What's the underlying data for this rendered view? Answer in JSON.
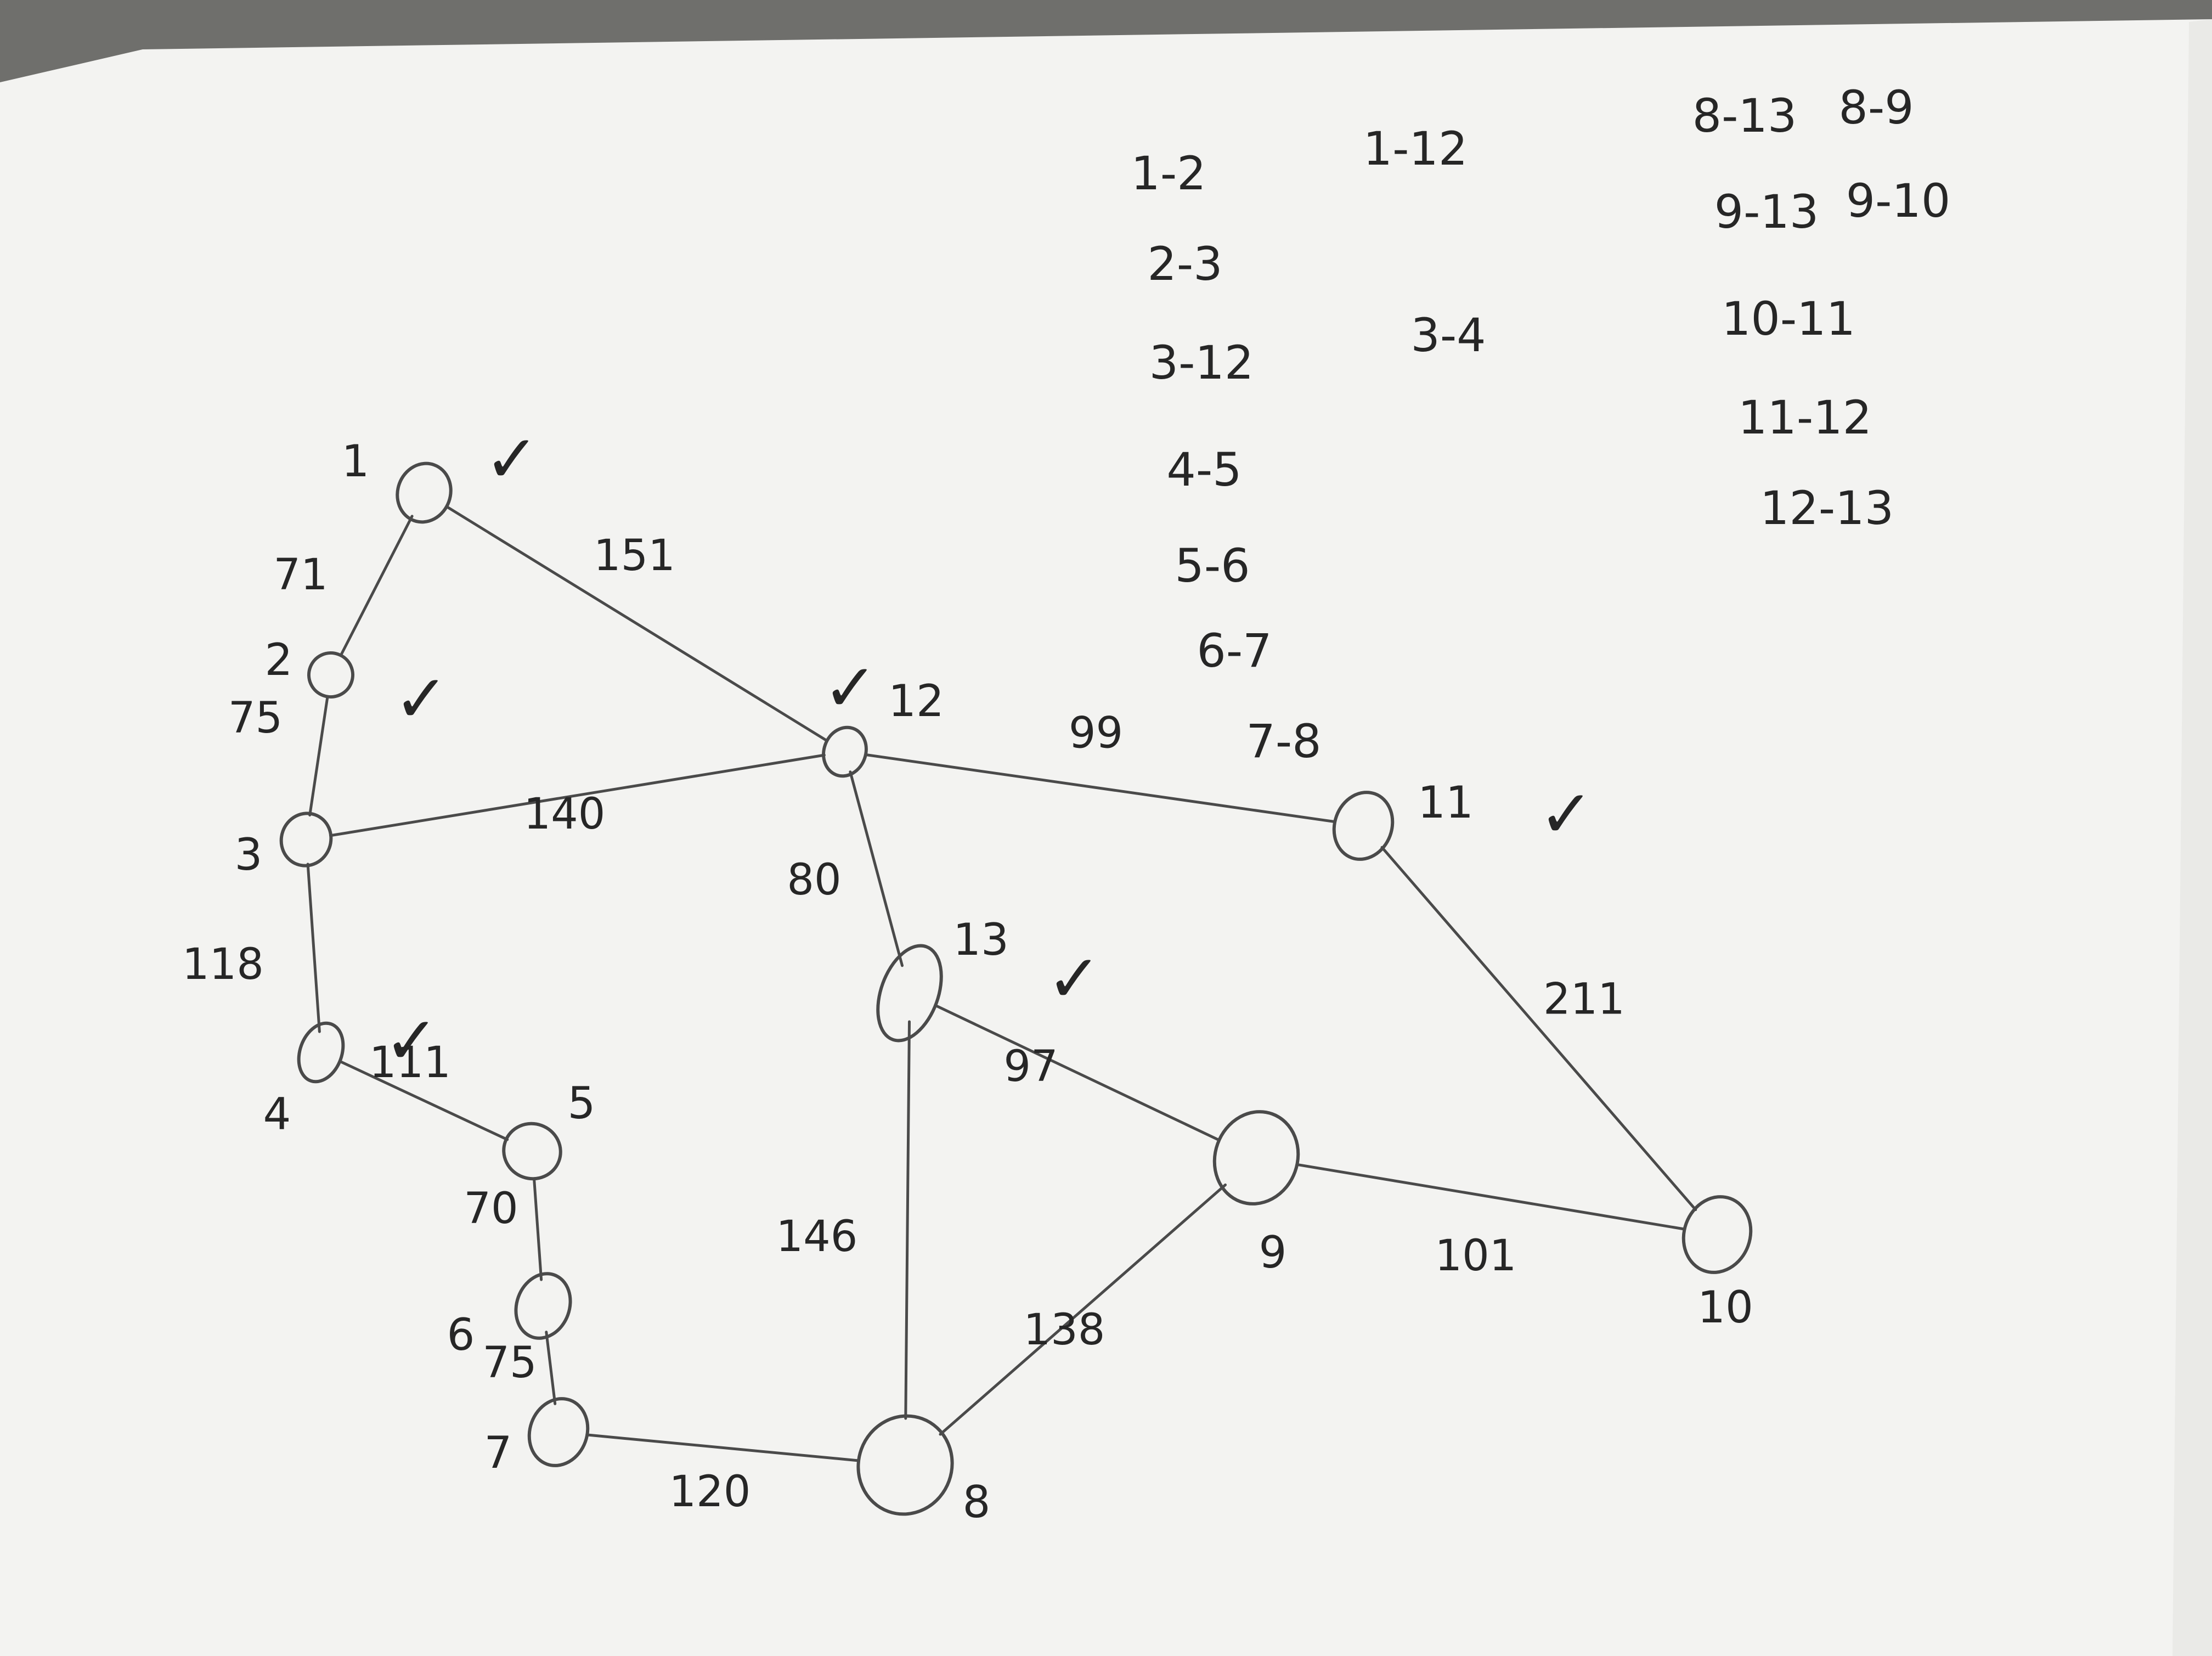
{
  "nodes": [
    {
      "id": "1",
      "label": "1",
      "checked": true
    },
    {
      "id": "2",
      "label": "2",
      "checked": true
    },
    {
      "id": "3",
      "label": "3",
      "checked": false
    },
    {
      "id": "4",
      "label": "4",
      "checked": true
    },
    {
      "id": "5",
      "label": "5",
      "checked": false
    },
    {
      "id": "6",
      "label": "6",
      "checked": false
    },
    {
      "id": "7",
      "label": "7",
      "checked": false
    },
    {
      "id": "8",
      "label": "8",
      "checked": false
    },
    {
      "id": "9",
      "label": "9",
      "checked": false
    },
    {
      "id": "10",
      "label": "10",
      "checked": false
    },
    {
      "id": "11",
      "label": "11",
      "checked": true
    },
    {
      "id": "12",
      "label": "12",
      "checked": true
    },
    {
      "id": "13",
      "label": "13",
      "checked": true
    }
  ],
  "edges": [
    {
      "from": "1",
      "to": "2",
      "weight": "71"
    },
    {
      "from": "1",
      "to": "12",
      "weight": "151"
    },
    {
      "from": "2",
      "to": "3",
      "weight": "75"
    },
    {
      "from": "3",
      "to": "12",
      "weight": "140"
    },
    {
      "from": "3",
      "to": "4",
      "weight": "118"
    },
    {
      "from": "4",
      "to": "5",
      "weight": "111"
    },
    {
      "from": "5",
      "to": "6",
      "weight": "70"
    },
    {
      "from": "6",
      "to": "7",
      "weight": "75"
    },
    {
      "from": "7",
      "to": "8",
      "weight": "120"
    },
    {
      "from": "8",
      "to": "13",
      "weight": "146"
    },
    {
      "from": "8",
      "to": "9",
      "weight": "138"
    },
    {
      "from": "9",
      "to": "13",
      "weight": "97"
    },
    {
      "from": "9",
      "to": "10",
      "weight": "101"
    },
    {
      "from": "10",
      "to": "11",
      "weight": "211"
    },
    {
      "from": "11",
      "to": "12",
      "weight": "99"
    },
    {
      "from": "12",
      "to": "13",
      "weight": "80"
    }
  ],
  "edge_list_notes": [
    "1-2",
    "1-12",
    "2-3",
    "3-12",
    "3-4",
    "4-5",
    "5-6",
    "6-7",
    "7-8",
    "8-13",
    "8-9",
    "9-13",
    "9-10",
    "10-11",
    "11-12",
    "12-13"
  ],
  "check_mark": "✓",
  "colors": {
    "paper": "#f3f3f1",
    "pencil": "#4a4a4a",
    "background": "#6f6f6c"
  }
}
